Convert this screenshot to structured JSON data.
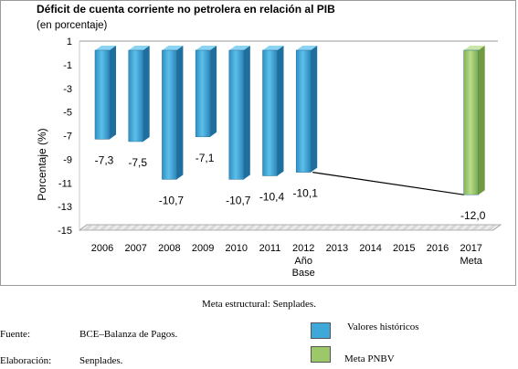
{
  "chart_data": {
    "type": "bar",
    "title": "Déficit de cuenta corriente no petrolera en relación al PIB",
    "subtitle": "(en porcentaje)",
    "ylabel": "Porcentaje (%)",
    "xlabel": "",
    "ylim": [
      -15,
      1
    ],
    "yticks": [
      1,
      -1,
      -3,
      -5,
      -7,
      -9,
      -11,
      -13,
      -15
    ],
    "categories": [
      "2006",
      "2007",
      "2008",
      "2009",
      "2010",
      "2011",
      "2012",
      "2013",
      "2014",
      "2015",
      "2016",
      "2017"
    ],
    "category_sublabels": {
      "2012": [
        "Año",
        "Base"
      ],
      "2017": [
        "Meta"
      ]
    },
    "series": [
      {
        "name": "Valores históricos",
        "color": "#3ea8d8",
        "values": [
          -7.3,
          -7.5,
          -10.7,
          -7.1,
          -10.7,
          -10.4,
          -10.1,
          null,
          null,
          null,
          null,
          null
        ],
        "labels": [
          "-7,3",
          "-7,5",
          "-10,7",
          "-7,1",
          "-10,7",
          "-10,4",
          "-10,1",
          "",
          "",
          "",
          "",
          ""
        ]
      },
      {
        "name": "Meta PNBV",
        "color": "#9dc86a",
        "values": [
          null,
          null,
          null,
          null,
          null,
          null,
          null,
          null,
          null,
          null,
          null,
          -12.0
        ],
        "labels": [
          "",
          "",
          "",
          "",
          "",
          "",
          "",
          "",
          "",
          "",
          "",
          "-12,0"
        ]
      }
    ],
    "trend_line": {
      "from": "2012",
      "to": "2017",
      "from_value": -10.1,
      "to_value": -12.0
    },
    "grid": false,
    "legend": "bottom-right"
  },
  "caption": "Meta estructural: Senplades.",
  "footer": {
    "source_label": "Fuente:",
    "source_value": "BCE–Balanza de Pagos.",
    "prepared_label": "Elaboración:",
    "prepared_value": "Senplades."
  },
  "legend": {
    "items": [
      {
        "label": "Valores históricos",
        "color": "#3ea8d8"
      },
      {
        "label": "Meta PNBV",
        "color": "#9dc86a"
      }
    ]
  }
}
